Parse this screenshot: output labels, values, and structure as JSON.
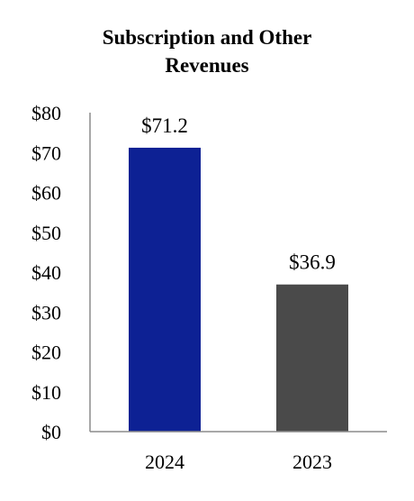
{
  "chart_data": {
    "type": "bar",
    "title_lines": [
      "Subscription and Other",
      "Revenues"
    ],
    "categories": [
      "2024",
      "2023"
    ],
    "values": [
      71.2,
      36.9
    ],
    "data_labels": [
      "$71.2",
      "$36.9"
    ],
    "colors": [
      "#0d2194",
      "#4a4a4a"
    ],
    "y_ticks": [
      0,
      10,
      20,
      30,
      40,
      50,
      60,
      70,
      80
    ],
    "y_tick_labels": [
      "$0",
      "$10",
      "$20",
      "$30",
      "$40",
      "$50",
      "$60",
      "$70",
      "$80"
    ],
    "ylim": [
      0,
      80
    ],
    "xlabel": "",
    "ylabel": "",
    "grid": false,
    "legend": "none"
  }
}
